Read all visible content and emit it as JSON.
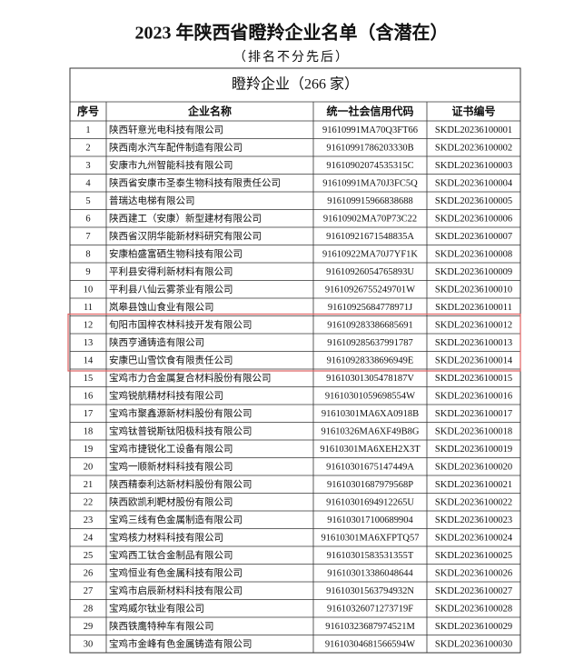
{
  "header": {
    "title": "2023 年陕西省瞪羚企业名单（含潜在）",
    "subtitle": "（排名不分先后）"
  },
  "table": {
    "caption": "瞪羚企业（266 家）",
    "columns": [
      "序号",
      "企业名称",
      "统一社会信用代码",
      "证书编号"
    ],
    "rows": [
      [
        "1",
        "陕西轩意光电科技有限公司",
        "91610991MA70Q3FT66",
        "SKDL20236100001"
      ],
      [
        "2",
        "陕西南水汽车配件制造有限公司",
        "91610991786203330B",
        "SKDL20236100002"
      ],
      [
        "3",
        "安康市九州智能科技有限公司",
        "91610902074535315C",
        "SKDL20236100003"
      ],
      [
        "4",
        "陕西省安康市圣泰生物科技有限责任公司",
        "91610991MA70J3FC5Q",
        "SKDL20236100004"
      ],
      [
        "5",
        "普瑞达电梯有限公司",
        "916109915966838688",
        "SKDL20236100005"
      ],
      [
        "6",
        "陕西建工（安康）新型建材有限公司",
        "91610902MA70P73C22",
        "SKDL20236100006"
      ],
      [
        "7",
        "陕西省汉阴华能新材料研究有限公司",
        "91610921671548835A",
        "SKDL20236100007"
      ],
      [
        "8",
        "安康柏盛富硒生物科技有限公司",
        "91610922MA70J7YF1K",
        "SKDL20236100008"
      ],
      [
        "9",
        "平利县安得利新材料有限公司",
        "91610926054765893U",
        "SKDL20236100009"
      ],
      [
        "10",
        "平利县八仙云雾茶业有限公司",
        "91610926755249701W",
        "SKDL20236100010"
      ],
      [
        "11",
        "岚皋县蚀山食业有限公司",
        "91610925684778971J",
        "SKDL20236100011"
      ],
      [
        "12",
        "旬阳市国梓农林科技开发有限公司",
        "916109283386685691",
        "SKDL20236100012"
      ],
      [
        "13",
        "陕西亨通铸造有限公司",
        "916109285637991787",
        "SKDL20236100013"
      ],
      [
        "14",
        "安康巴山雪饮食有限责任公司",
        "91610928338696949E",
        "SKDL20236100014"
      ],
      [
        "15",
        "宝鸡市力合金属复合材料股份有限公司",
        "91610301305478187V",
        "SKDL20236100015"
      ],
      [
        "16",
        "宝鸡锐航精材科技有限公司",
        "91610301059698554W",
        "SKDL20236100016"
      ],
      [
        "17",
        "宝鸡市聚鑫源新材料股份有限公司",
        "91610301MA6XA0918B",
        "SKDL20236100017"
      ],
      [
        "18",
        "宝鸡钛普锐斯钛阳极科技有限公司",
        "91610326MA6XF49B8G",
        "SKDL20236100018"
      ],
      [
        "19",
        "宝鸡市捷锐化工设备有限公司",
        "91610301MA6XEH2X3T",
        "SKDL20236100019"
      ],
      [
        "20",
        "宝鸡一顺新材料科技有限公司",
        "91610301675147449A",
        "SKDL20236100020"
      ],
      [
        "21",
        "陕西精泰利达新材料股份有限公司",
        "91610301687979568P",
        "SKDL20236100021"
      ],
      [
        "22",
        "陕西欧凯利靶材股份有限公司",
        "91610301694912265U",
        "SKDL20236100022"
      ],
      [
        "23",
        "宝鸡三线有色金属制造有限公司",
        "916103017100689904",
        "SKDL20236100023"
      ],
      [
        "24",
        "宝鸡核力材料科技有限公司",
        "91610301MA6XFPTQ57",
        "SKDL20236100024"
      ],
      [
        "25",
        "宝鸡西工钛合金制品有限公司",
        "91610301583531355T",
        "SKDL20236100025"
      ],
      [
        "26",
        "宝鸡恒业有色金属科技有限公司",
        "916103013386048644",
        "SKDL20236100026"
      ],
      [
        "27",
        "宝鸡市启辰新材料科技有限公司",
        "91610301563794932N",
        "SKDL20236100027"
      ],
      [
        "28",
        "宝鸡威尔钛业有限公司",
        "91610326071273719F",
        "SKDL20236100028"
      ],
      [
        "29",
        "陕西铁鹰特种车有限公司",
        "91610323687974521M",
        "SKDL20236100029"
      ],
      [
        "30",
        "宝鸡市金峰有色金属铸造有限公司",
        "91610304681566594W",
        "SKDL20236100030"
      ]
    ]
  }
}
